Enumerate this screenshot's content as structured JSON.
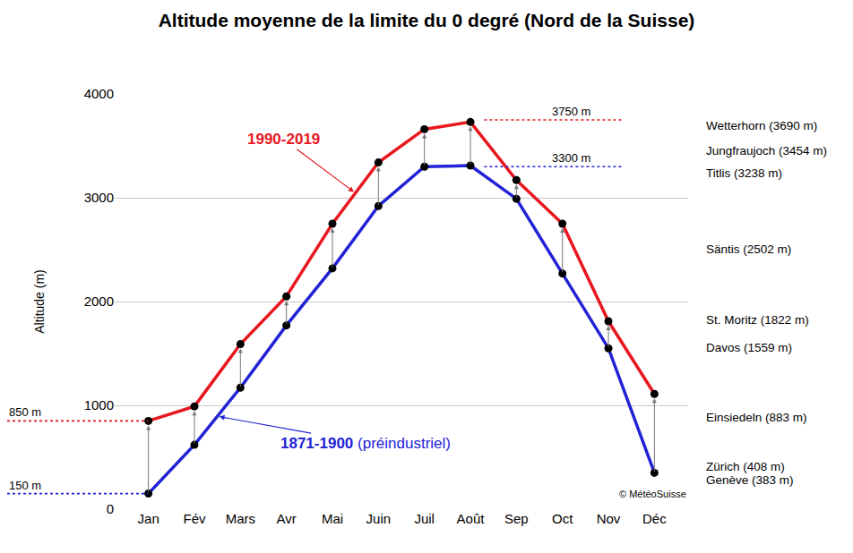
{
  "chart_data": {
    "type": "line",
    "title": "Altitude moyenne de la limite du 0 degré (Nord de la Suisse)",
    "y_label": "Altitude (m)",
    "categories": [
      "Jan",
      "Fév",
      "Mars",
      "Avr",
      "Mai",
      "Juin",
      "Juil",
      "Août",
      "Sep",
      "Oct",
      "Nov",
      "Déc"
    ],
    "series": [
      {
        "name": "1990-2019",
        "color": "#e8171f",
        "marker": "circle",
        "values": [
          850,
          990,
          1590,
          2050,
          2750,
          3340,
          3660,
          3730,
          3170,
          2750,
          1810,
          1110
        ],
        "reference_lines": [
          {
            "value": 850,
            "label": "850 m"
          },
          {
            "value": 3750,
            "label": "3750 m"
          }
        ]
      },
      {
        "name": "1871-1900",
        "description": "(préindustriel)",
        "color": "#2222d6",
        "marker": "circle",
        "values": [
          150,
          620,
          1170,
          1770,
          2320,
          2920,
          3300,
          3310,
          2990,
          2270,
          1550,
          350
        ],
        "reference_lines": [
          {
            "value": 150,
            "label": "150 m"
          },
          {
            "value": 3300,
            "label": "3300 m"
          }
        ]
      }
    ],
    "places": [
      {
        "label": "Wetterhorn (3690 m)",
        "value": 3690
      },
      {
        "label": "Jungfraujoch (3454 m)",
        "value": 3454
      },
      {
        "label": "Titlis (3238 m)",
        "value": 3238
      },
      {
        "label": "Säntis (2502 m)",
        "value": 2502
      },
      {
        "label": "St. Moritz (1822 m)",
        "value": 1822
      },
      {
        "label": "Davos (1559 m)",
        "value": 1559
      },
      {
        "label": "Einsiedeln (883 m)",
        "value": 883
      },
      {
        "label": "Zürich (408 m)",
        "value": 408
      },
      {
        "label": "Genève (383 m)",
        "value": 383
      }
    ],
    "source": "© MétéoSuisse",
    "ylim": [
      0,
      4000
    ],
    "yticks": [
      0,
      1000,
      2000,
      3000,
      4000
    ],
    "grid": true
  }
}
